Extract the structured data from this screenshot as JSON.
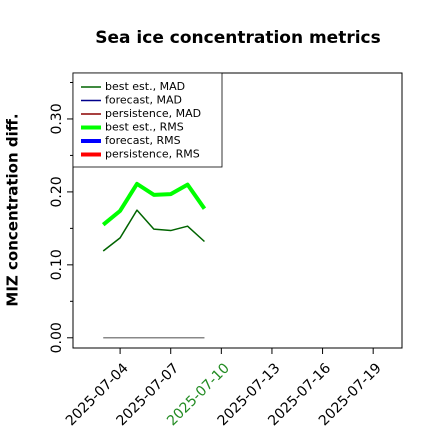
{
  "chart_data": {
    "type": "line",
    "title": "Sea ice concentration metrics",
    "y_label": "MIZ concentration diff.",
    "x": [
      "2025-07-03",
      "2025-07-04",
      "2025-07-05",
      "2025-07-06",
      "2025-07-07",
      "2025-07-08",
      "2025-07-09"
    ],
    "series": [
      {
        "name": "best est., MAD",
        "color": "#006400",
        "width": 1.5,
        "values": [
          0.119,
          0.137,
          0.175,
          0.149,
          0.147,
          0.153,
          0.132
        ]
      },
      {
        "name": "forecast,  MAD",
        "color": "#00008b",
        "width": 1.5,
        "values": [
          null,
          null,
          null,
          null,
          null,
          null,
          null
        ]
      },
      {
        "name": "persistence, MAD",
        "color": "#8b0000",
        "width": 1.5,
        "values": [
          null,
          null,
          null,
          null,
          null,
          null,
          null
        ]
      },
      {
        "name": "best est., RMS",
        "color": "#00ff00",
        "width": 4,
        "values": [
          0.155,
          0.174,
          0.211,
          0.196,
          0.197,
          0.21,
          0.177
        ]
      },
      {
        "name": "forecast,  RMS",
        "color": "#0000ff",
        "width": 4,
        "values": [
          null,
          null,
          null,
          null,
          null,
          null,
          null
        ]
      },
      {
        "name": "persistence, RMS",
        "color": "#ff0000",
        "width": 4,
        "values": [
          null,
          null,
          null,
          null,
          null,
          null,
          null
        ]
      }
    ],
    "reference_line": {
      "value": 0,
      "color": "#888888"
    },
    "xlim": [
      "2025-07-01T05:00:00Z",
      "2025-07-20T17:00:00Z"
    ],
    "xticks": [
      "2025-07-04",
      "2025-07-07",
      "2025-07-10",
      "2025-07-13",
      "2025-07-16",
      "2025-07-19"
    ],
    "highlight_xtick": {
      "index": 2,
      "color": "#228b22"
    },
    "ylim": [
      -0.014,
      0.363
    ],
    "yticks": [
      {
        "value": 0,
        "label": "0.00"
      },
      {
        "value": 0.1,
        "label": "0.10"
      },
      {
        "value": 0.2,
        "label": "0.20"
      },
      {
        "value": 0.3,
        "label": "0.30"
      }
    ],
    "yminorticks": [
      0.05,
      0.15,
      0.25,
      0.35
    ],
    "legend": "upper-left"
  }
}
